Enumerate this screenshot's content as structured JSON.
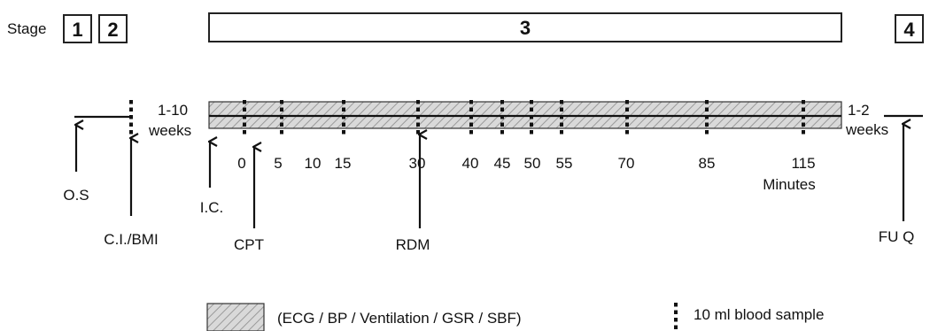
{
  "stage_label": "Stage",
  "stages": [
    "1",
    "2",
    "3",
    "4"
  ],
  "duration_left": [
    "1-10",
    "weeks"
  ],
  "duration_right": [
    "1-2",
    "weeks"
  ],
  "minute_ticks": [
    "0",
    "5",
    "10",
    "15",
    "30",
    "40",
    "45",
    "50",
    "55",
    "70",
    "85",
    "115"
  ],
  "minutes_label": "Minutes",
  "events": {
    "os": "O.S",
    "ci_bmi": "C.I./BMI",
    "ic": "I.C.",
    "cpt": "CPT",
    "rdm": "RDM",
    "fuq": "FU Q"
  },
  "legend": {
    "hatched": "(ECG / BP / Ventilation / GSR / SBF)",
    "dashed": "10 ml blood sample"
  },
  "colors": {
    "hatch_fill": "#d9d9d9",
    "line": "#111111"
  }
}
